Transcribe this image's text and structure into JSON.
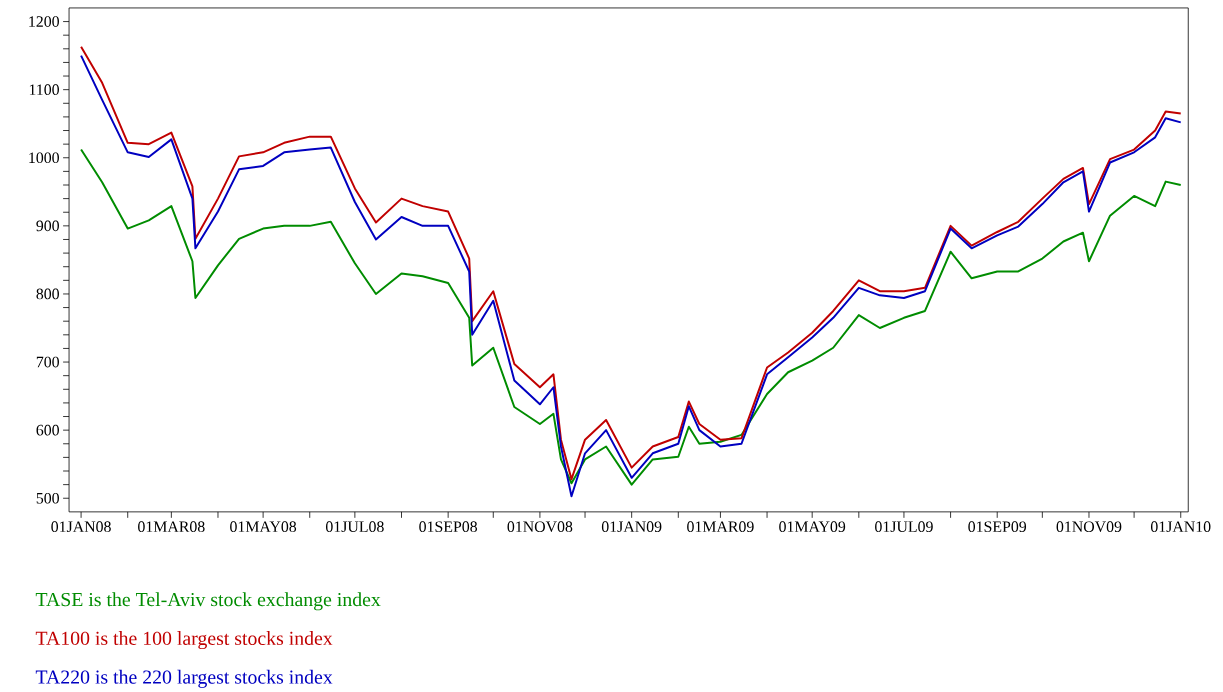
{
  "chart_data": {
    "type": "line",
    "x": [
      "2008-01-01",
      "2008-01-15",
      "2008-02-01",
      "2008-02-15",
      "2008-03-01",
      "2008-03-15",
      "2008-03-17",
      "2008-04-01",
      "2008-04-15",
      "2008-05-01",
      "2008-05-15",
      "2008-06-01",
      "2008-06-15",
      "2008-07-01",
      "2008-07-15",
      "2008-08-01",
      "2008-08-15",
      "2008-09-01",
      "2008-09-15",
      "2008-09-17",
      "2008-10-01",
      "2008-10-15",
      "2008-11-01",
      "2008-11-10",
      "2008-11-15",
      "2008-11-22",
      "2008-12-01",
      "2008-12-15",
      "2009-01-01",
      "2009-01-15",
      "2009-02-01",
      "2009-02-08",
      "2009-02-15",
      "2009-03-01",
      "2009-03-15",
      "2009-04-01",
      "2009-04-15",
      "2009-05-01",
      "2009-05-15",
      "2009-06-01",
      "2009-06-15",
      "2009-07-01",
      "2009-07-15",
      "2009-08-01",
      "2009-08-15",
      "2009-09-01",
      "2009-09-15",
      "2009-10-01",
      "2009-10-15",
      "2009-10-28",
      "2009-11-01",
      "2009-11-15",
      "2009-12-01",
      "2009-12-15",
      "2009-12-22",
      "2010-01-01"
    ],
    "series": [
      {
        "name": "TASE is the Tel-Aviv stock exchange index",
        "color": "#008c00",
        "values": [
          1012,
          964,
          896,
          908,
          929,
          848,
          794,
          842,
          881,
          896,
          900,
          900,
          906,
          845,
          800,
          830,
          826,
          816,
          765,
          695,
          721,
          634,
          609,
          624,
          557,
          522,
          557,
          576,
          520,
          557,
          561,
          605,
          580,
          583,
          593,
          653,
          685,
          702,
          721,
          769,
          750,
          765,
          775,
          862,
          823,
          833,
          833,
          852,
          877,
          890,
          848,
          915,
          944,
          929,
          965,
          960
        ]
      },
      {
        "name": "TA100 is the 100 largest stocks index",
        "color": "#c00000",
        "values": [
          1163,
          1110,
          1022,
          1020,
          1037,
          958,
          881,
          940,
          1002,
          1008,
          1022,
          1031,
          1031,
          955,
          905,
          940,
          929,
          921,
          852,
          760,
          804,
          697,
          663,
          682,
          586,
          528,
          586,
          615,
          545,
          576,
          590,
          642,
          609,
          586,
          588,
          692,
          714,
          743,
          775,
          820,
          804,
          804,
          809,
          900,
          871,
          891,
          906,
          940,
          969,
          985,
          932,
          998,
          1012,
          1040,
          1068,
          1065
        ]
      },
      {
        "name": "TA220 is the 220 largest stocks index",
        "color": "#0000c0",
        "values": [
          1150,
          1085,
          1008,
          1001,
          1027,
          940,
          867,
          921,
          983,
          988,
          1008,
          1012,
          1015,
          935,
          880,
          913,
          900,
          900,
          833,
          740,
          790,
          673,
          638,
          663,
          576,
          503,
          566,
          600,
          530,
          566,
          580,
          635,
          600,
          576,
          580,
          682,
          707,
          736,
          765,
          809,
          798,
          794,
          804,
          896,
          867,
          886,
          899,
          932,
          964,
          980,
          921,
          993,
          1008,
          1030,
          1058,
          1052
        ]
      }
    ],
    "xlim": [
      "2007-12-24",
      "2010-01-06"
    ],
    "xticks": [
      {
        "value": "2008-01-01",
        "label": "01JAN08"
      },
      {
        "value": "2008-02-01",
        "label": null
      },
      {
        "value": "2008-03-01",
        "label": "01MAR08"
      },
      {
        "value": "2008-04-01",
        "label": null
      },
      {
        "value": "2008-05-01",
        "label": "01MAY08"
      },
      {
        "value": "2008-06-01",
        "label": null
      },
      {
        "value": "2008-07-01",
        "label": "01JUL08"
      },
      {
        "value": "2008-08-01",
        "label": null
      },
      {
        "value": "2008-09-01",
        "label": "01SEP08"
      },
      {
        "value": "2008-10-01",
        "label": null
      },
      {
        "value": "2008-11-01",
        "label": "01NOV08"
      },
      {
        "value": "2008-12-01",
        "label": null
      },
      {
        "value": "2009-01-01",
        "label": "01JAN09"
      },
      {
        "value": "2009-02-01",
        "label": null
      },
      {
        "value": "2009-03-01",
        "label": "01MAR09"
      },
      {
        "value": "2009-04-01",
        "label": null
      },
      {
        "value": "2009-05-01",
        "label": "01MAY09"
      },
      {
        "value": "2009-06-01",
        "label": null
      },
      {
        "value": "2009-07-01",
        "label": "01JUL09"
      },
      {
        "value": "2009-08-01",
        "label": null
      },
      {
        "value": "2009-09-01",
        "label": "01SEP09"
      },
      {
        "value": "2009-10-01",
        "label": null
      },
      {
        "value": "2009-11-01",
        "label": "01NOV09"
      },
      {
        "value": "2009-12-01",
        "label": null
      },
      {
        "value": "2010-01-01",
        "label": "01JAN10"
      }
    ],
    "ylim": [
      480,
      1220
    ],
    "yticks": [
      500,
      {
        "value": 520,
        "label": null
      },
      {
        "value": 540,
        "label": null
      },
      {
        "value": 560,
        "label": null
      },
      {
        "value": 580,
        "label": null
      },
      600,
      {
        "value": 620,
        "label": null
      },
      {
        "value": 640,
        "label": null
      },
      {
        "value": 660,
        "label": null
      },
      {
        "value": 680,
        "label": null
      },
      700,
      {
        "value": 720,
        "label": null
      },
      {
        "value": 740,
        "label": null
      },
      {
        "value": 760,
        "label": null
      },
      {
        "value": 780,
        "label": null
      },
      800,
      {
        "value": 820,
        "label": null
      },
      {
        "value": 840,
        "label": null
      },
      {
        "value": 860,
        "label": null
      },
      {
        "value": 880,
        "label": null
      },
      900,
      {
        "value": 920,
        "label": null
      },
      {
        "value": 940,
        "label": null
      },
      {
        "value": 960,
        "label": null
      },
      {
        "value": 980,
        "label": null
      },
      1000,
      {
        "value": 1020,
        "label": null
      },
      {
        "value": 1040,
        "label": null
      },
      {
        "value": 1060,
        "label": null
      },
      {
        "value": 1080,
        "label": null
      },
      1100,
      {
        "value": 1120,
        "label": null
      },
      {
        "value": 1140,
        "label": null
      },
      {
        "value": 1160,
        "label": null
      },
      {
        "value": 1180,
        "label": null
      },
      1200
    ],
    "legend": "bottom left",
    "marker": "none",
    "line_style": "solid",
    "grid": false
  }
}
